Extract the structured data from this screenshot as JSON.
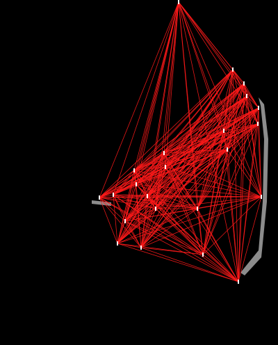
{
  "background_color": "#000000",
  "edge_color": "#ff1a1a",
  "node_color": "#ffffff",
  "glow_color": "#ffffff",
  "graph": {
    "description_free": true,
    "node_count": 23,
    "edges": "complete"
  }
}
